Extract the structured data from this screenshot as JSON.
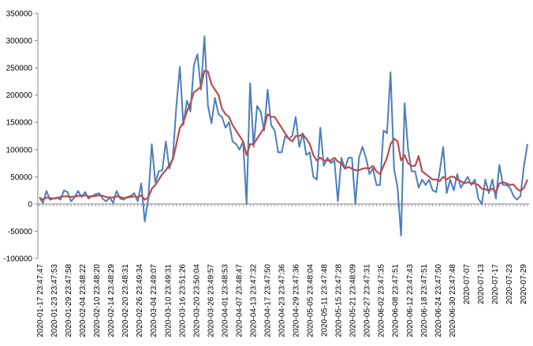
{
  "chart_data": {
    "type": "line",
    "title": "",
    "xlabel": "",
    "ylabel": "",
    "ylim": [
      -100000,
      350000
    ],
    "yticks": [
      "350000",
      "300000",
      "250000",
      "200000",
      "150000",
      "100000",
      "50000",
      "0",
      "-50000",
      "-100000"
    ],
    "xticks": [
      "2020-01-17 23:47:47",
      "2020-01-23 23:47:53",
      "2020-01-29 23:47:58",
      "2020-02-04 23:48:22",
      "2020-02-10 23:48:20",
      "2020-02-14 23:48:29",
      "2020-02-20 23:48:31",
      "2020-02-26 23:49:34",
      "2020-03-04 23:49:07",
      "2020-03-10 23:49:31",
      "2020-03-16 23:51:26",
      "2020-03-20 23:50:04",
      "2020-03-26 23:49:57",
      "2020-04-01 23:48:53",
      "2020-04-07 23:48:47",
      "2020-04-13 23:47:32",
      "2020-04-17 23:47:50",
      "2020-04-23 23:47:36",
      "2020-04-29 23:47:36",
      "2020-05-05 23:48:04",
      "2020-05-11 23:47:48",
      "2020-05-15 23:47:28",
      "2020-05-21 23:48:09",
      "2020-05-27 23:47:31",
      "2020-06-02 23:47:35",
      "2020-06-08 23:47:51",
      "2020-06-12 23:47:43",
      "2020-06-18 23:47:51",
      "2020-06-24 23:47:50",
      "2020-06-30 23:47:48",
      "2020-07-07",
      "2020-07-13",
      "2020-07-17",
      "2020-07-23",
      "2020-07-29"
    ],
    "grid": false,
    "legend": "none",
    "series": [
      {
        "color": "#4a7ebb",
        "values": [
          12000,
          2000,
          24000,
          8000,
          10000,
          12000,
          8000,
          25000,
          22000,
          5000,
          12000,
          24000,
          13000,
          22000,
          10000,
          15000,
          18000,
          20000,
          10000,
          5000,
          12000,
          2000,
          24000,
          10000,
          8000,
          13000,
          15000,
          20000,
          5000,
          38000,
          -32000,
          10000,
          110000,
          40000,
          60000,
          62000,
          115000,
          65000,
          85000,
          180000,
          252000,
          145000,
          190000,
          170000,
          255000,
          275000,
          210000,
          308000,
          180000,
          148000,
          195000,
          165000,
          160000,
          140000,
          150000,
          115000,
          110000,
          100000,
          115000,
          0,
          222000,
          105000,
          180000,
          170000,
          135000,
          210000,
          145000,
          135000,
          95000,
          95000,
          125000,
          120000,
          125000,
          160000,
          105000,
          130000,
          90000,
          95000,
          50000,
          45000,
          140000,
          70000,
          85000,
          75000,
          80000,
          5000,
          85000,
          65000,
          85000,
          85000,
          0,
          85000,
          105000,
          85000,
          55000,
          65000,
          35000,
          35000,
          135000,
          130000,
          242000,
          65000,
          30000,
          -58000,
          185000,
          100000,
          60000,
          60000,
          30000,
          45000,
          35000,
          45000,
          25000,
          22000,
          60000,
          105000,
          20000,
          45000,
          25000,
          55000,
          30000,
          40000,
          50000,
          35000,
          45000,
          10000,
          0,
          45000,
          20000,
          45000,
          10000,
          72000,
          35000,
          35000,
          30000,
          15000,
          8000,
          15000,
          70000,
          110000
        ],
        "values_note": ""
      },
      {
        "color": "#be4b48",
        "values": [
          12000,
          8000,
          12000,
          11000,
          10000,
          11000,
          13000,
          14000,
          14000,
          13000,
          14000,
          15000,
          15000,
          16000,
          14000,
          14000,
          15000,
          16000,
          15000,
          13000,
          12000,
          12000,
          14000,
          13000,
          11000,
          12000,
          13000,
          14000,
          13000,
          16000,
          8000,
          12000,
          28000,
          35000,
          45000,
          55000,
          62000,
          72000,
          82000,
          110000,
          140000,
          150000,
          170000,
          185000,
          205000,
          210000,
          215000,
          245000,
          243000,
          220000,
          210000,
          200000,
          175000,
          165000,
          160000,
          145000,
          135000,
          125000,
          115000,
          90000,
          110000,
          110000,
          120000,
          130000,
          140000,
          165000,
          160000,
          160000,
          150000,
          140000,
          130000,
          120000,
          115000,
          125000,
          125000,
          128000,
          120000,
          110000,
          90000,
          80000,
          85000,
          80000,
          80000,
          80000,
          85000,
          78000,
          75000,
          65000,
          68000,
          65000,
          62000,
          62000,
          65000,
          66000,
          65000,
          70000,
          60000,
          55000,
          70000,
          85000,
          110000,
          120000,
          115000,
          80000,
          90000,
          75000,
          70000,
          70000,
          88000,
          60000,
          55000,
          50000,
          45000,
          45000,
          42000,
          50000,
          45000,
          50000,
          50000,
          45000,
          42000,
          38000,
          40000,
          38000,
          38000,
          35000,
          28000,
          27000,
          25000,
          28000,
          22000,
          38000,
          40000,
          38000,
          35000,
          36000,
          28000,
          24000,
          30000,
          45000
        ]
      }
    ]
  }
}
